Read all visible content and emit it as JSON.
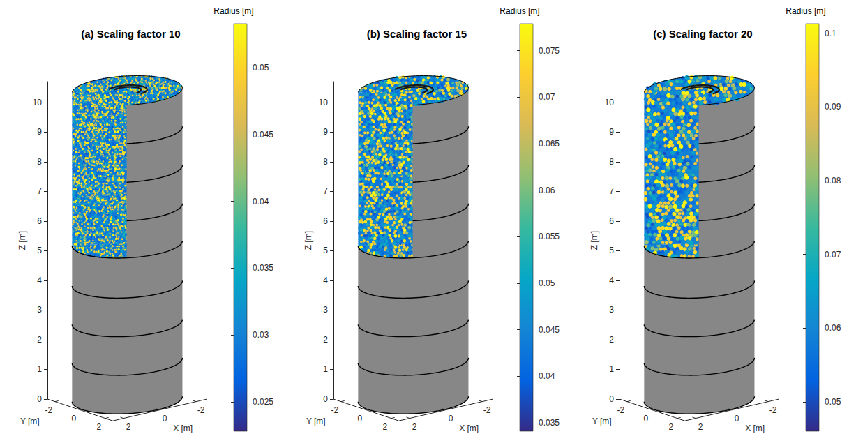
{
  "chart_data": [
    {
      "type": "scatter3d",
      "title": "(a) Scaling factor 10",
      "xlabel": "X [m]",
      "ylabel": "Y [m]",
      "zlabel": "Z [m]",
      "xlim": [
        -2.6,
        2.6
      ],
      "xticks": [
        -2,
        0,
        2
      ],
      "ylim": [
        -2.6,
        2.6
      ],
      "yticks": [
        -2,
        0,
        2
      ],
      "zlim": [
        0,
        10.7
      ],
      "zticks": [
        0,
        1,
        2,
        3,
        4,
        5,
        6,
        7,
        8,
        9,
        10
      ],
      "grid": false,
      "silo": {
        "radius": 2.5,
        "height": 10.4,
        "cut_height": 5.25,
        "ring_heights": [
          1.3,
          2.6,
          3.9,
          6.5,
          7.8,
          9.1
        ]
      },
      "colorbar": {
        "label": "Radius [m]",
        "range": [
          0.0228,
          0.0533
        ],
        "ticks": [
          0.025,
          0.03,
          0.035,
          0.04,
          0.045,
          0.05
        ]
      }
    },
    {
      "type": "scatter3d",
      "title": "(b) Scaling factor 15",
      "xlabel": "X [m]",
      "ylabel": "Y [m]",
      "zlabel": "Z [m]",
      "xlim": [
        -2.6,
        2.6
      ],
      "xticks": [
        -2,
        0,
        2
      ],
      "ylim": [
        -2.6,
        2.6
      ],
      "yticks": [
        -2,
        0,
        2
      ],
      "zlim": [
        0,
        10.7
      ],
      "zticks": [
        0,
        1,
        2,
        3,
        4,
        5,
        6,
        7,
        8,
        9,
        10
      ],
      "grid": false,
      "silo": {
        "radius": 2.5,
        "height": 10.4,
        "cut_height": 5.25,
        "ring_heights": [
          1.3,
          2.6,
          3.9,
          6.5,
          7.8,
          9.1
        ]
      },
      "colorbar": {
        "label": "Radius [m]",
        "range": [
          0.0341,
          0.0779
        ],
        "ticks": [
          0.035,
          0.04,
          0.045,
          0.05,
          0.055,
          0.06,
          0.065,
          0.07,
          0.075
        ]
      }
    },
    {
      "type": "scatter3d",
      "title": "(c) Scaling factor 20",
      "xlabel": "X [m]",
      "ylabel": "Y [m]",
      "zlabel": "Z [m]",
      "xlim": [
        -2.6,
        2.6
      ],
      "xticks": [
        -2,
        0,
        2
      ],
      "ylim": [
        -2.6,
        2.6
      ],
      "yticks": [
        -2,
        0,
        2
      ],
      "zlim": [
        0,
        10.7
      ],
      "zticks": [
        0,
        1,
        2,
        3,
        4,
        5,
        6,
        7,
        8,
        9,
        10
      ],
      "grid": false,
      "silo": {
        "radius": 2.5,
        "height": 10.4,
        "cut_height": 5.25,
        "ring_heights": [
          1.3,
          2.6,
          3.9,
          6.5,
          7.8,
          9.1
        ]
      },
      "colorbar": {
        "label": "Radius [m]",
        "range": [
          0.046,
          0.1013
        ],
        "ticks": [
          0.05,
          0.06,
          0.07,
          0.08,
          0.09,
          0.1
        ]
      }
    }
  ]
}
